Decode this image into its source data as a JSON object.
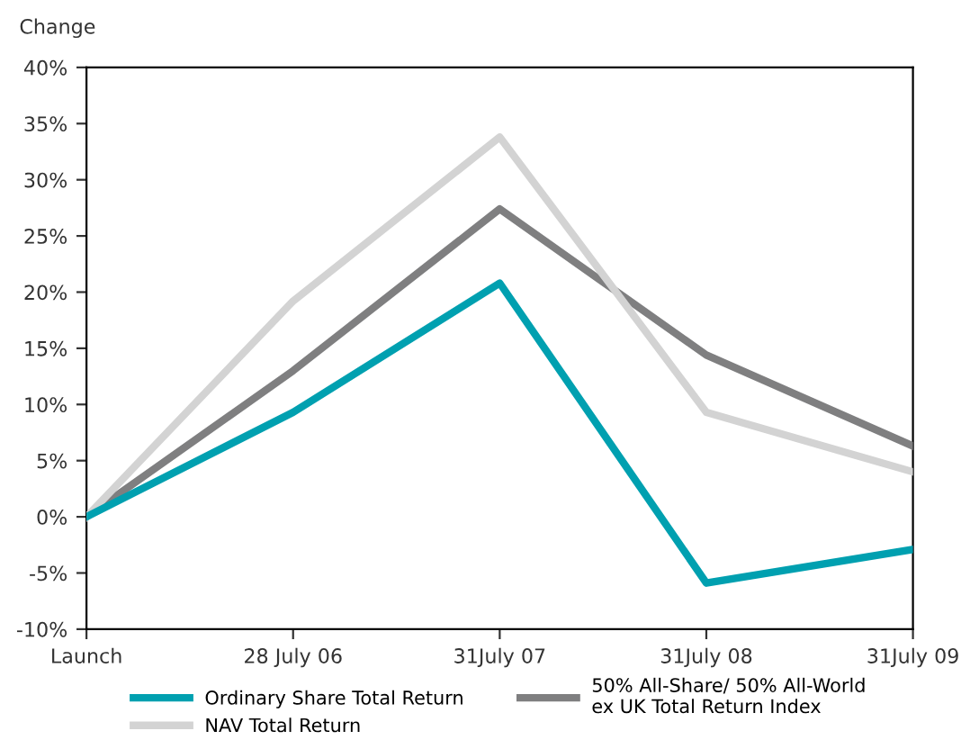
{
  "chart_data": {
    "type": "line",
    "ylabel": "Change",
    "categories": [
      "Launch",
      "28 July 06",
      "31July 07",
      "31July 08",
      "31July 09"
    ],
    "series": [
      {
        "name": "Ordinary Share Total Return",
        "color": "#00a0b0",
        "values": [
          0,
          9.3,
          20.8,
          -5.9,
          -2.9
        ]
      },
      {
        "name": "NAV Total Return",
        "color": "#d3d3d3",
        "values": [
          0,
          19.2,
          33.8,
          9.3,
          4.0
        ]
      },
      {
        "name": "50% All-Share/ 50% All-World\nex UK Total Return Index",
        "color": "#7f7f80",
        "values": [
          0,
          13.0,
          27.4,
          14.4,
          6.3
        ]
      }
    ],
    "ylim": [
      -10,
      40
    ],
    "yticks": [
      {
        "value": -10,
        "label": "-10%"
      },
      {
        "value": -5,
        "label": "-5%"
      },
      {
        "value": 0,
        "label": "0%"
      },
      {
        "value": 5,
        "label": "5%"
      },
      {
        "value": 10,
        "label": "10%"
      },
      {
        "value": 15,
        "label": "15%"
      },
      {
        "value": 20,
        "label": "20%"
      },
      {
        "value": 25,
        "label": "25%"
      },
      {
        "value": 30,
        "label": "30%"
      },
      {
        "value": 35,
        "label": "35%"
      },
      {
        "value": 40,
        "label": "40%"
      }
    ],
    "grid": false,
    "legend": "bottom",
    "marker": "none",
    "line_style": "solid"
  }
}
